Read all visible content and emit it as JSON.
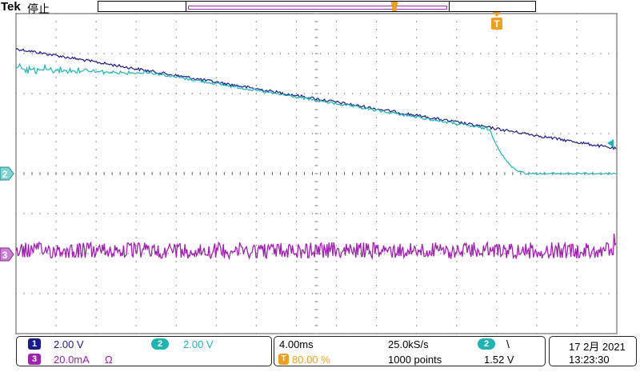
{
  "header": {
    "brand": "Tek",
    "state": "停止",
    "trigger_marker_label": "T"
  },
  "colors": {
    "ch1": "#1a1a8c",
    "ch2": "#1fb3b3",
    "ch3": "#a020b0",
    "trigger": "#f0a020",
    "grid": "#777777"
  },
  "markers": {
    "ch2_label": "2",
    "ch3_label": "3"
  },
  "channels": {
    "ch1": {
      "badge": "1",
      "scale": "2.00 V"
    },
    "ch2": {
      "badge": "2",
      "scale": "2.00 V"
    },
    "ch3": {
      "badge": "3",
      "scale": "20.0mA",
      "unit_symbol": "Ω"
    }
  },
  "timebase": {
    "time_per_div": "4.00ms",
    "sample_rate": "25.0kS/s",
    "trigger_position": "80.00 %",
    "record_length": "1000 points"
  },
  "trigger": {
    "source": "2",
    "slope_icon": "falling-edge-icon",
    "slope_glyph": "\\",
    "level": "1.52 V"
  },
  "clock": {
    "date": "17 2月  2021",
    "time": "13:23:30"
  }
}
